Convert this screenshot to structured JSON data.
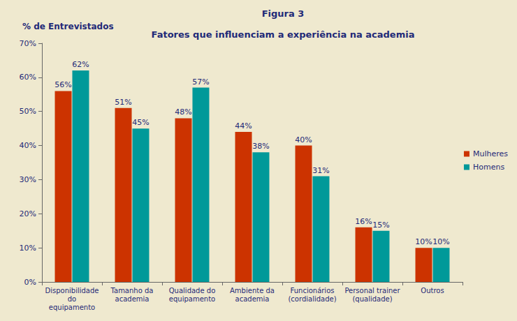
{
  "chart_data": {
    "type": "bar",
    "title": "Figura 3",
    "subtitle": "Fatores que influenciam a experiência na academia",
    "ylabel": "% de Entrevistados",
    "categories": [
      "Disponibilidade\ndo\nequipamento",
      "Tamanho da\nacademia",
      "Qualidade do\nequipamento",
      "Ambiente da\nacademia",
      "Funcionários\n(cordialidade)",
      "Personal trainer\n(qualidade)",
      "Outros"
    ],
    "series": [
      {
        "name": "Mulheres",
        "color": "#cc3300",
        "values": [
          56,
          51,
          48,
          44,
          40,
          16,
          10
        ],
        "value_labels": [
          "56%",
          "51%",
          "48%",
          "44%",
          "40%",
          "16%",
          "10%"
        ]
      },
      {
        "name": "Homens",
        "color": "#009999",
        "values": [
          62,
          45,
          57,
          38,
          31,
          15,
          10
        ],
        "value_labels": [
          "62%",
          "45%",
          "57%",
          "38%",
          "31%",
          "15%",
          "10%"
        ]
      }
    ],
    "ylim": [
      0,
      70
    ],
    "yticks": [
      {
        "value": 0,
        "label": "0%"
      },
      {
        "value": 10,
        "label": "10%"
      },
      {
        "value": 20,
        "label": "20%"
      },
      {
        "value": 30,
        "label": "30%"
      },
      {
        "value": 40,
        "label": "40%"
      },
      {
        "value": 50,
        "label": "50%"
      },
      {
        "value": 60,
        "label": "60%"
      },
      {
        "value": 70,
        "label": "70%"
      }
    ],
    "grid": false,
    "legend": "right",
    "data_labels": true
  }
}
